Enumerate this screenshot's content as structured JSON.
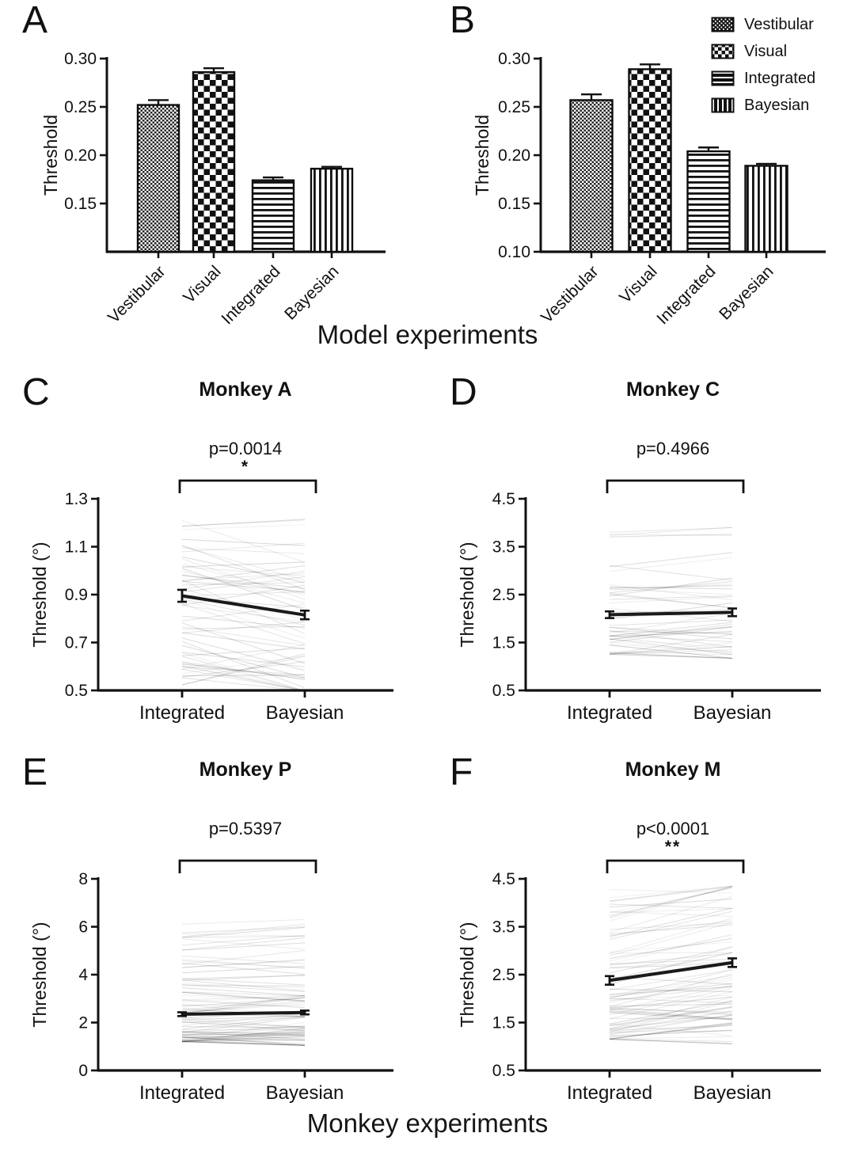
{
  "figure": {
    "caption_top": "Model experiments",
    "caption_bottom": "Monkey experiments"
  },
  "legend": {
    "items": [
      {
        "label": "Vestibular",
        "pattern": "vestibular"
      },
      {
        "label": "Visual",
        "pattern": "visual"
      },
      {
        "label": "Integrated",
        "pattern": "integrated"
      },
      {
        "label": "Bayesian",
        "pattern": "bayesian"
      }
    ]
  },
  "colors": {
    "axis": "#111111",
    "bar_outline": "#0d0d0d",
    "session_line": "#000000",
    "mean_line": "#1a1a1a"
  },
  "chart_data": [
    {
      "panel_label": "A",
      "type": "bar",
      "title": "",
      "ylabel": "Threshold",
      "categories": [
        "Vestibular",
        "Visual",
        "Integrated",
        "Bayesian"
      ],
      "values": [
        0.252,
        0.286,
        0.174,
        0.186
      ],
      "errors": [
        0.005,
        0.004,
        0.003,
        0.002
      ],
      "ylim": [
        0.1,
        0.3
      ],
      "yticks": [
        0.15,
        0.2,
        0.25,
        0.3
      ],
      "ytick_labels": [
        "0.15",
        "0.20",
        "0.25",
        "0.30"
      ],
      "grid": false,
      "legend_position": "none"
    },
    {
      "panel_label": "B",
      "type": "bar",
      "title": "",
      "ylabel": "Threshold",
      "categories": [
        "Vestibular",
        "Visual",
        "Integrated",
        "Bayesian"
      ],
      "values": [
        0.257,
        0.289,
        0.204,
        0.189
      ],
      "errors": [
        0.006,
        0.005,
        0.004,
        0.002
      ],
      "ylim": [
        0.1,
        0.3
      ],
      "yticks": [
        0.1,
        0.15,
        0.2,
        0.25,
        0.3
      ],
      "ytick_labels": [
        "0.10",
        "0.15",
        "0.20",
        "0.25",
        "0.30"
      ],
      "grid": false,
      "legend_position": "top-right"
    },
    {
      "panel_label": "C",
      "type": "line",
      "title": "Monkey A",
      "p_label": "p=0.0014",
      "significance": "*",
      "ylabel": "Threshold (°)",
      "categories": [
        "Integrated",
        "Bayesian"
      ],
      "series": [
        {
          "name": "mean",
          "values": [
            0.895,
            0.815
          ],
          "sem": [
            0.025,
            0.018
          ]
        }
      ],
      "ylim": [
        0.5,
        1.3
      ],
      "yticks": [
        0.5,
        0.7,
        0.9,
        1.1,
        1.3
      ],
      "ytick_labels": [
        "0.5",
        "0.7",
        "0.9",
        "1.1",
        "1.3"
      ],
      "sessions": {
        "count": 62,
        "min": 0.52,
        "max": 1.25,
        "skew": 1.2,
        "trend": -0.07,
        "spread": 0.34,
        "seed": 7
      },
      "grid": false
    },
    {
      "panel_label": "D",
      "type": "line",
      "title": "Monkey C",
      "p_label": "p=0.4966",
      "significance": "",
      "ylabel": "Threshold (°)",
      "categories": [
        "Integrated",
        "Bayesian"
      ],
      "series": [
        {
          "name": "mean",
          "values": [
            2.08,
            2.13
          ],
          "sem": [
            0.07,
            0.08
          ]
        }
      ],
      "ylim": [
        0.5,
        4.5
      ],
      "yticks": [
        0.5,
        1.5,
        2.5,
        3.5,
        4.5
      ],
      "ytick_labels": [
        "0.5",
        "1.5",
        "2.5",
        "3.5",
        "4.5"
      ],
      "sessions": {
        "count": 55,
        "min": 1.25,
        "max": 3.9,
        "skew": 2.2,
        "trend": 0.03,
        "spread": 0.8,
        "seed": 11
      },
      "grid": false
    },
    {
      "panel_label": "E",
      "type": "line",
      "title": "Monkey P",
      "p_label": "p=0.5397",
      "significance": "",
      "ylabel": "Threshold (°)",
      "categories": [
        "Integrated",
        "Bayesian"
      ],
      "series": [
        {
          "name": "mean",
          "values": [
            2.35,
            2.42
          ],
          "sem": [
            0.08,
            0.08
          ]
        }
      ],
      "ylim": [
        0,
        8
      ],
      "yticks": [
        0,
        2,
        4,
        6,
        8
      ],
      "ytick_labels": [
        "0",
        "2",
        "4",
        "6",
        "8"
      ],
      "sessions": {
        "count": 95,
        "min": 1.2,
        "max": 6.3,
        "skew": 2.6,
        "trend": 0.1,
        "spread": 1.2,
        "seed": 23
      },
      "grid": false
    },
    {
      "panel_label": "F",
      "type": "line",
      "title": "Monkey M",
      "p_label": "p<0.0001",
      "significance": "**",
      "ylabel": "Threshold (°)",
      "categories": [
        "Integrated",
        "Bayesian"
      ],
      "series": [
        {
          "name": "mean",
          "values": [
            2.38,
            2.75
          ],
          "sem": [
            0.09,
            0.09
          ]
        }
      ],
      "ylim": [
        0.5,
        4.5
      ],
      "yticks": [
        0.5,
        1.5,
        2.5,
        3.5,
        4.5
      ],
      "ytick_labels": [
        "0.5",
        "1.5",
        "2.5",
        "3.5",
        "4.5"
      ],
      "sessions": {
        "count": 85,
        "min": 1.15,
        "max": 4.35,
        "skew": 1.8,
        "trend": 0.33,
        "spread": 0.9,
        "seed": 31
      },
      "grid": false
    }
  ]
}
